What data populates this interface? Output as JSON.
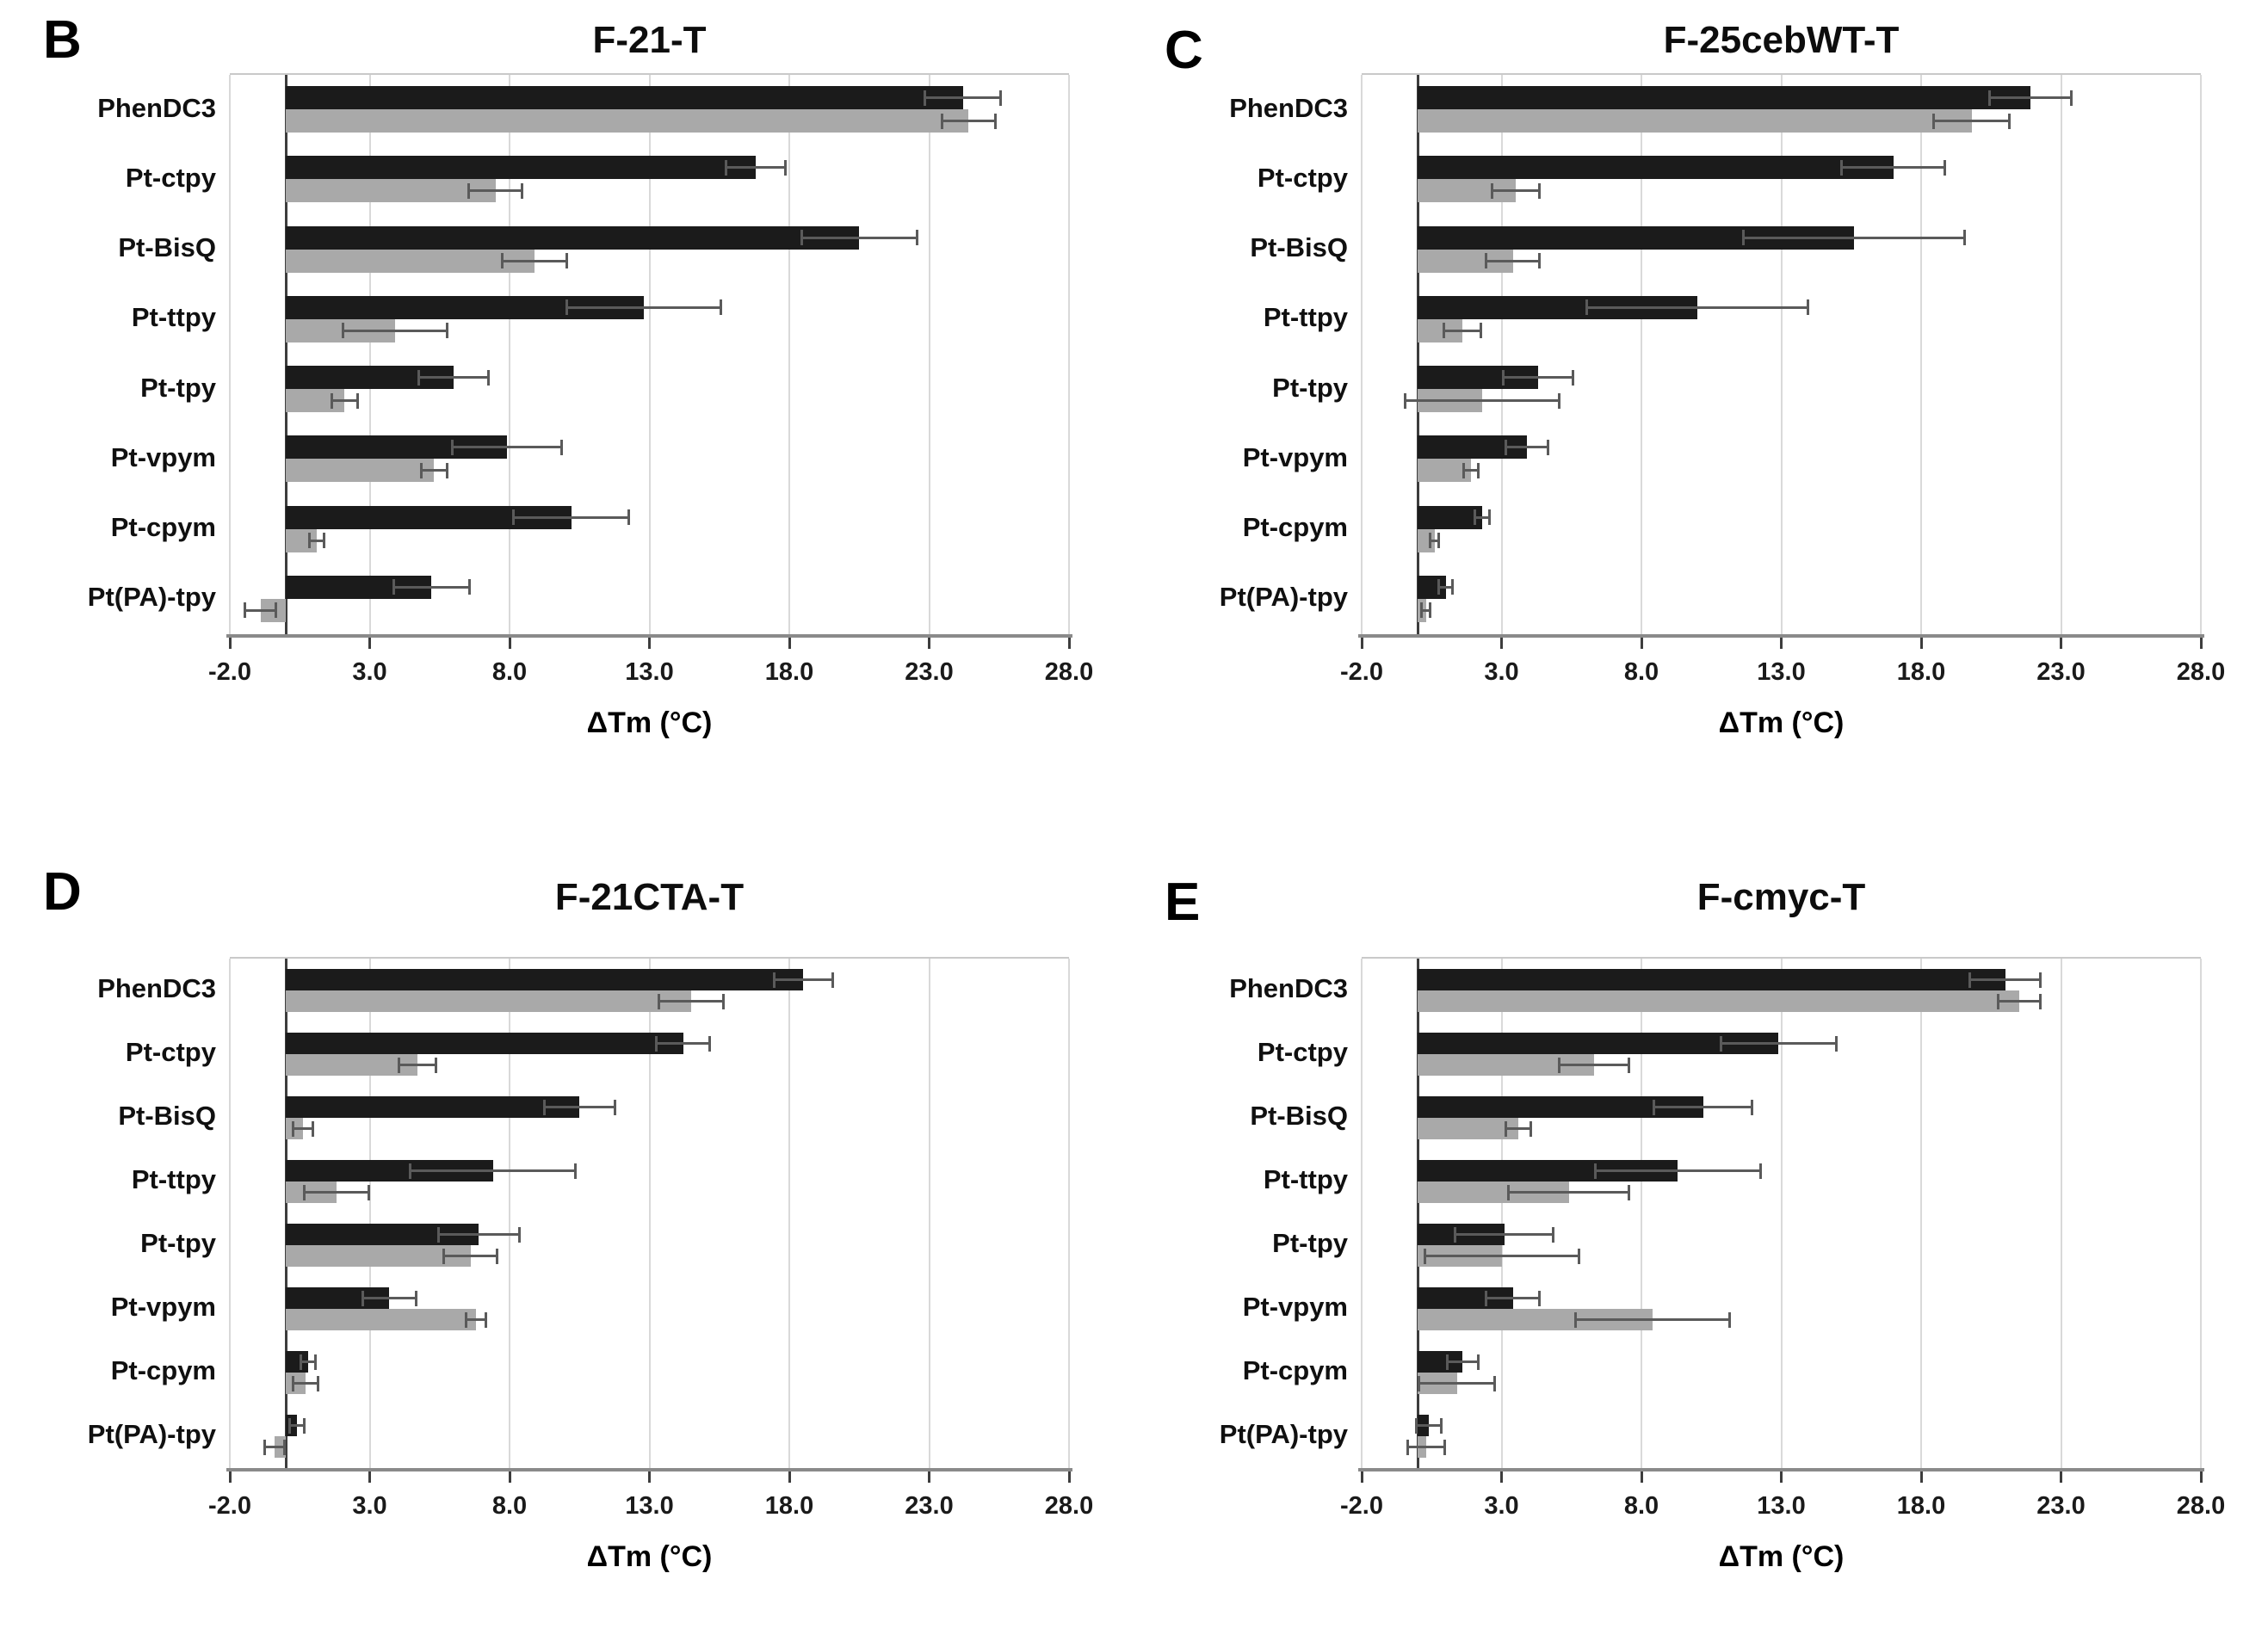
{
  "figure": {
    "x_axis_label": "ΔTm (°C)",
    "bar_colors": {
      "black_series": "#1b1b1b",
      "gray_series": "#a9a9a9"
    },
    "gridline_color": "#d9d9d9",
    "axis_color": "#8a8a8a"
  },
  "chart_data": [
    {
      "panel": "B",
      "title": "F-21-T",
      "type": "bar",
      "orientation": "horizontal",
      "xlabel": "ΔTm (°C)",
      "xlim": [
        -2,
        28
      ],
      "xticks": [
        -2,
        3,
        8,
        13,
        18,
        23,
        28
      ],
      "xtick_labels": [
        "-2.0",
        "3.0",
        "8.0",
        "13.0",
        "18.0",
        "23.0",
        "28.0"
      ],
      "grid": true,
      "legend": "none",
      "categories": [
        "PhenDC3",
        "Pt-ctpy",
        "Pt-BisQ",
        "Pt-ttpy",
        "Pt-tpy",
        "Pt-vpym",
        "Pt-cpym",
        "Pt(PA)-tpy"
      ],
      "series": [
        {
          "name": "black",
          "color": "#1b1b1b",
          "values": [
            24.2,
            16.8,
            20.5,
            12.8,
            6.0,
            7.9,
            10.2,
            5.2
          ],
          "errors": [
            1.4,
            1.1,
            2.1,
            2.8,
            1.3,
            2.0,
            2.1,
            1.4
          ]
        },
        {
          "name": "gray",
          "color": "#a9a9a9",
          "values": [
            24.4,
            7.5,
            8.9,
            3.9,
            2.1,
            5.3,
            1.1,
            -0.9
          ],
          "errors": [
            1.0,
            1.0,
            1.2,
            1.9,
            0.5,
            0.5,
            0.3,
            0.6
          ]
        }
      ]
    },
    {
      "panel": "C",
      "title": "F-25cebWT-T",
      "type": "bar",
      "orientation": "horizontal",
      "xlabel": "ΔTm (°C)",
      "xlim": [
        -2,
        28
      ],
      "xticks": [
        -2,
        3,
        8,
        13,
        18,
        23,
        28
      ],
      "xtick_labels": [
        "-2.0",
        "3.0",
        "8.0",
        "13.0",
        "18.0",
        "23.0",
        "28.0"
      ],
      "grid": true,
      "legend": "none",
      "categories": [
        "PhenDC3",
        "Pt-ctpy",
        "Pt-BisQ",
        "Pt-ttpy",
        "Pt-tpy",
        "Pt-vpym",
        "Pt-cpym",
        "Pt(PA)-tpy"
      ],
      "series": [
        {
          "name": "black",
          "color": "#1b1b1b",
          "values": [
            21.9,
            17.0,
            15.6,
            10.0,
            4.3,
            3.9,
            2.3,
            1.0
          ],
          "errors": [
            1.5,
            1.9,
            4.0,
            4.0,
            1.3,
            0.8,
            0.3,
            0.3
          ]
        },
        {
          "name": "gray",
          "color": "#a9a9a9",
          "values": [
            19.8,
            3.5,
            3.4,
            1.6,
            2.3,
            1.9,
            0.6,
            0.3
          ],
          "errors": [
            1.4,
            0.9,
            1.0,
            0.7,
            2.8,
            0.3,
            0.2,
            0.2
          ]
        }
      ]
    },
    {
      "panel": "D",
      "title": "F-21CTA-T",
      "type": "bar",
      "orientation": "horizontal",
      "xlabel": "ΔTm (°C)",
      "xlim": [
        -2,
        28
      ],
      "xticks": [
        -2,
        3,
        8,
        13,
        18,
        23,
        28
      ],
      "xtick_labels": [
        "-2.0",
        "3.0",
        "8.0",
        "13.0",
        "18.0",
        "23.0",
        "28.0"
      ],
      "grid": true,
      "legend": "none",
      "categories": [
        "PhenDC3",
        "Pt-ctpy",
        "Pt-BisQ",
        "Pt-ttpy",
        "Pt-tpy",
        "Pt-vpym",
        "Pt-cpym",
        "Pt(PA)-tpy"
      ],
      "series": [
        {
          "name": "black",
          "color": "#1b1b1b",
          "values": [
            18.5,
            14.2,
            10.5,
            7.4,
            6.9,
            3.7,
            0.8,
            0.4
          ],
          "errors": [
            1.1,
            1.0,
            1.3,
            3.0,
            1.5,
            1.0,
            0.3,
            0.3
          ]
        },
        {
          "name": "gray",
          "color": "#a9a9a9",
          "values": [
            14.5,
            4.7,
            0.6,
            1.8,
            6.6,
            6.8,
            0.7,
            -0.4
          ],
          "errors": [
            1.2,
            0.7,
            0.4,
            1.2,
            1.0,
            0.4,
            0.5,
            0.4
          ]
        }
      ]
    },
    {
      "panel": "E",
      "title": "F-cmyc-T",
      "type": "bar",
      "orientation": "horizontal",
      "xlabel": "ΔTm (°C)",
      "xlim": [
        -2,
        28
      ],
      "xticks": [
        -2,
        3,
        8,
        13,
        18,
        23,
        28
      ],
      "xtick_labels": [
        "-2.0",
        "3.0",
        "8.0",
        "13.0",
        "18.0",
        "23.0",
        "28.0"
      ],
      "grid": true,
      "legend": "none",
      "categories": [
        "PhenDC3",
        "Pt-ctpy",
        "Pt-BisQ",
        "Pt-ttpy",
        "Pt-tpy",
        "Pt-vpym",
        "Pt-cpym",
        "Pt(PA)-tpy"
      ],
      "series": [
        {
          "name": "black",
          "color": "#1b1b1b",
          "values": [
            21.0,
            12.9,
            10.2,
            9.3,
            3.1,
            3.4,
            1.6,
            0.4
          ],
          "errors": [
            1.3,
            2.1,
            1.8,
            3.0,
            1.8,
            1.0,
            0.6,
            0.5
          ]
        },
        {
          "name": "gray",
          "color": "#a9a9a9",
          "values": [
            21.5,
            6.3,
            3.6,
            5.4,
            3.0,
            8.4,
            1.4,
            0.3
          ],
          "errors": [
            0.8,
            1.3,
            0.5,
            2.2,
            2.8,
            2.8,
            1.4,
            0.7
          ]
        }
      ]
    }
  ]
}
